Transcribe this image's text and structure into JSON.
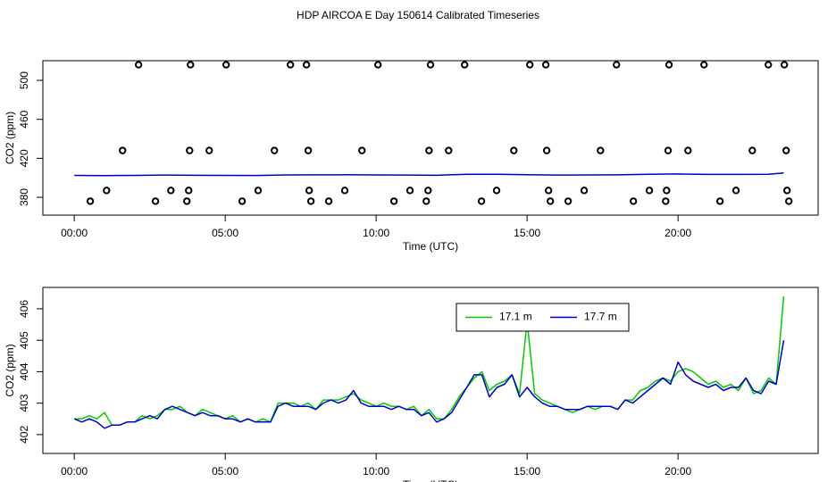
{
  "title": "HDP AIRCOA E  Day 150614  Calibrated Timeseries",
  "chart_data": [
    {
      "type": "scatter",
      "xlabel": "Time (UTC)",
      "ylabel": "CO2 (ppm)",
      "xlim": [
        -1.04,
        24.64
      ],
      "ylim": [
        361.7,
        520.2
      ],
      "xticks": [
        {
          "value": 0,
          "label": "00:00"
        },
        {
          "value": 5,
          "label": "05:00"
        },
        {
          "value": 10,
          "label": "10:00"
        },
        {
          "value": 15,
          "label": "15:00"
        },
        {
          "value": 20,
          "label": "20:00"
        }
      ],
      "yticks": [
        380,
        420,
        460,
        500
      ],
      "series": [
        {
          "type": "scatter",
          "color": "#000000",
          "x": [
            2.13,
            3.85,
            5.03,
            7.16,
            7.69,
            10.06,
            11.8,
            12.93,
            15.09,
            15.62,
            17.96,
            19.7,
            20.86,
            22.99,
            23.52,
            1.6,
            3.82,
            4.47,
            6.63,
            7.75,
            9.53,
            11.75,
            12.4,
            14.56,
            15.65,
            17.43,
            19.67,
            20.33,
            22.46,
            23.58,
            1.07,
            3.2,
            3.79,
            6.09,
            7.78,
            8.96,
            11.12,
            11.72,
            13.99,
            15.71,
            16.89,
            19.05,
            19.62,
            21.92,
            23.61,
            0.53,
            2.69,
            3.73,
            5.56,
            7.84,
            8.43,
            10.59,
            11.66,
            13.49,
            15.77,
            16.36,
            18.52,
            19.59,
            21.39,
            23.67
          ],
          "values": [
            516,
            516,
            516,
            516,
            516,
            516,
            516,
            516,
            516,
            516,
            516,
            516,
            516,
            516,
            516,
            428,
            428,
            428,
            428,
            428,
            428,
            428,
            428,
            428,
            428,
            428,
            428,
            428,
            428,
            428,
            387,
            387,
            387,
            387,
            387,
            387,
            387,
            387,
            387,
            387,
            387,
            387,
            387,
            387,
            387,
            376,
            376,
            376,
            376,
            376,
            376,
            376,
            376,
            376,
            376,
            376,
            376,
            376,
            376,
            376
          ]
        },
        {
          "type": "line",
          "color": "#0000cc",
          "x": [
            0,
            1,
            2,
            3,
            4,
            5,
            6,
            7,
            8,
            9,
            10,
            11,
            12,
            13,
            14,
            15,
            16,
            17,
            18,
            19,
            20,
            21,
            22,
            23,
            23.5
          ],
          "values": [
            402.5,
            402.3,
            402.5,
            402.8,
            402.6,
            402.5,
            402.4,
            402.9,
            403.0,
            403.1,
            402.9,
            402.8,
            402.6,
            403.7,
            403.6,
            403.2,
            402.8,
            402.9,
            403.0,
            403.6,
            403.9,
            403.5,
            403.5,
            403.7,
            405.0
          ]
        }
      ]
    },
    {
      "type": "line",
      "xlabel": "Time (UTC)",
      "ylabel": "CO2 (ppm)",
      "xlim": [
        -1.04,
        24.64
      ],
      "ylim": [
        401.4,
        406.68
      ],
      "xticks": [
        {
          "value": 0,
          "label": "00:00"
        },
        {
          "value": 5,
          "label": "05:00"
        },
        {
          "value": 10,
          "label": "10:00"
        },
        {
          "value": 15,
          "label": "15:00"
        },
        {
          "value": 20,
          "label": "20:00"
        }
      ],
      "yticks": [
        402,
        403,
        404,
        405,
        406
      ],
      "legend": "top",
      "x": [
        0,
        0.25,
        0.5,
        0.75,
        1,
        1.25,
        1.5,
        1.75,
        2,
        2.25,
        2.5,
        2.75,
        3,
        3.25,
        3.5,
        3.75,
        4,
        4.25,
        4.5,
        4.75,
        5,
        5.25,
        5.5,
        5.75,
        6,
        6.25,
        6.5,
        6.75,
        7,
        7.25,
        7.5,
        7.75,
        8,
        8.25,
        8.5,
        8.75,
        9,
        9.25,
        9.5,
        9.75,
        10,
        10.25,
        10.5,
        10.75,
        11,
        11.25,
        11.5,
        11.75,
        12,
        12.25,
        12.5,
        12.75,
        13,
        13.25,
        13.5,
        13.75,
        14,
        14.25,
        14.5,
        14.75,
        15,
        15.25,
        15.5,
        15.75,
        16,
        16.25,
        16.5,
        16.75,
        17,
        17.25,
        17.5,
        17.75,
        18,
        18.25,
        18.5,
        18.75,
        19,
        19.25,
        19.5,
        19.75,
        20,
        20.25,
        20.5,
        20.75,
        21,
        21.25,
        21.5,
        21.75,
        22,
        22.25,
        22.5,
        22.75,
        23,
        23.25,
        23.5
      ],
      "series": [
        {
          "name": "17.1 m",
          "color": "#00cc00",
          "values": [
            402.5,
            402.5,
            402.6,
            402.5,
            402.7,
            402.3,
            402.3,
            402.4,
            402.4,
            402.6,
            402.5,
            402.6,
            402.8,
            402.8,
            402.9,
            402.7,
            402.6,
            402.8,
            402.7,
            402.6,
            402.5,
            402.6,
            402.4,
            402.5,
            402.4,
            402.5,
            402.4,
            403.0,
            403.0,
            403.0,
            402.9,
            403.0,
            402.8,
            403.1,
            403.1,
            403.1,
            403.2,
            403.3,
            403.1,
            403.0,
            402.9,
            403.0,
            402.9,
            402.9,
            402.8,
            402.9,
            402.6,
            402.8,
            402.5,
            402.5,
            402.8,
            403.2,
            403.5,
            403.8,
            404.0,
            403.4,
            403.6,
            403.7,
            403.9,
            403.3,
            405.6,
            403.3,
            403.1,
            403.0,
            402.9,
            402.8,
            402.7,
            402.8,
            402.9,
            402.8,
            402.9,
            402.9,
            402.8,
            403.1,
            403.1,
            403.4,
            403.5,
            403.7,
            403.8,
            403.7,
            404.0,
            404.1,
            404.0,
            403.8,
            403.6,
            403.7,
            403.5,
            403.6,
            403.4,
            403.8,
            403.3,
            403.4,
            403.8,
            403.6,
            406.4
          ]
        },
        {
          "name": "17.7 m",
          "color": "#0000cc",
          "values": [
            402.5,
            402.4,
            402.5,
            402.4,
            402.2,
            402.3,
            402.3,
            402.4,
            402.4,
            402.5,
            402.6,
            402.5,
            402.8,
            402.9,
            402.8,
            402.7,
            402.6,
            402.7,
            402.6,
            402.6,
            402.5,
            402.5,
            402.4,
            402.5,
            402.4,
            402.4,
            402.4,
            402.9,
            403.0,
            402.9,
            402.9,
            402.9,
            402.8,
            403.0,
            403.1,
            403.0,
            403.1,
            403.4,
            403.0,
            402.9,
            402.9,
            402.9,
            402.8,
            402.9,
            402.8,
            402.8,
            402.6,
            402.7,
            402.4,
            402.5,
            402.7,
            403.1,
            403.5,
            403.9,
            403.9,
            403.2,
            403.5,
            403.6,
            403.9,
            403.2,
            403.5,
            403.2,
            403.0,
            402.9,
            402.9,
            402.8,
            402.8,
            402.8,
            402.9,
            402.9,
            402.9,
            402.9,
            402.8,
            403.1,
            403.0,
            403.2,
            403.4,
            403.6,
            403.8,
            403.6,
            404.3,
            403.9,
            403.7,
            403.6,
            403.5,
            403.6,
            403.4,
            403.5,
            403.5,
            403.8,
            403.4,
            403.3,
            403.7,
            403.6,
            405.0
          ]
        }
      ]
    }
  ]
}
